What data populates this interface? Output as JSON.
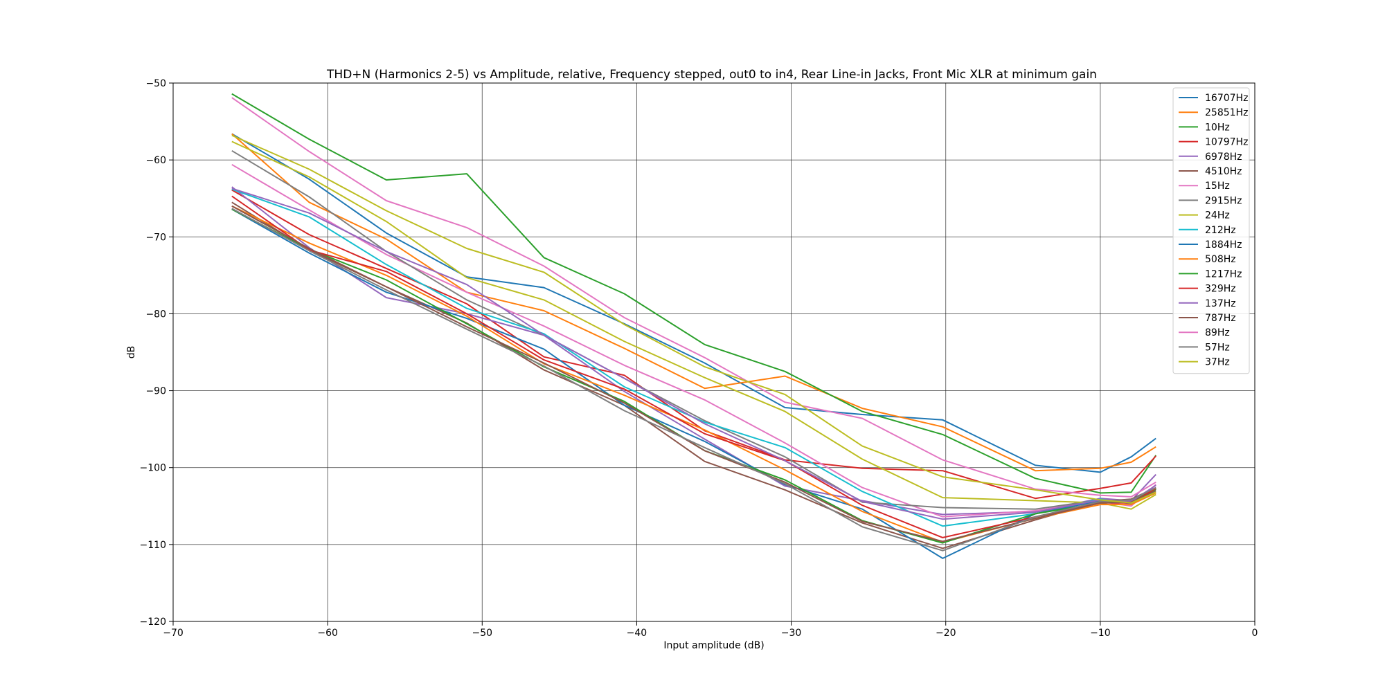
{
  "chart_data": {
    "type": "line",
    "title": "THD+N (Harmonics 2-5) vs Amplitude, relative, Frequency stepped, out0 to in4, Rear Line-in Jacks, Front Mic XLR at minimum gain",
    "xlabel": "Input amplitude (dB)",
    "ylabel": "dB",
    "xlim": [
      -70,
      0
    ],
    "ylim": [
      -120,
      -50
    ],
    "xticks": [
      -70,
      -60,
      -50,
      -40,
      -30,
      -20,
      -10,
      0
    ],
    "yticks": [
      -120,
      -110,
      -100,
      -90,
      -80,
      -70,
      -60,
      -50
    ],
    "xtick_labels": [
      "−70",
      "−60",
      "−50",
      "−40",
      "−30",
      "−20",
      "−10",
      "0"
    ],
    "ytick_labels": [
      "−120",
      "−110",
      "−100",
      "−90",
      "−80",
      "−70",
      "−60",
      "−50"
    ],
    "grid": true,
    "legend_position": "upper right",
    "x": [
      -66.2,
      -61.2,
      -56.2,
      -51.0,
      -46.0,
      -40.8,
      -35.6,
      -30.4,
      -25.4,
      -20.2,
      -14.2,
      -10.0,
      -8.0,
      -6.4
    ],
    "series": [
      {
        "name": "16707Hz",
        "color": "#1f77b4",
        "values": [
          -56.6,
          -62.5,
          -69.5,
          -75.2,
          -76.6,
          -81.3,
          -86.4,
          -92.2,
          -93.1,
          -93.8,
          -99.7,
          -100.6,
          -98.6,
          -96.2
        ]
      },
      {
        "name": "25851Hz",
        "color": "#ff7f0e",
        "values": [
          -56.6,
          -65.5,
          -70.3,
          -77.2,
          -79.6,
          -84.5,
          -89.7,
          -88.1,
          -92.3,
          -94.7,
          -100.4,
          -100.1,
          -99.3,
          -97.3
        ]
      },
      {
        "name": "10Hz",
        "color": "#2ca02c",
        "values": [
          -51.4,
          -57.3,
          -62.6,
          -61.8,
          -72.7,
          -77.4,
          -84.0,
          -87.5,
          -92.7,
          -95.7,
          -101.4,
          -103.3,
          -103.2,
          -98.4
        ]
      },
      {
        "name": "10797Hz",
        "color": "#d62728",
        "values": [
          -63.9,
          -69.7,
          -74.1,
          -78.7,
          -85.6,
          -88.0,
          -95.2,
          -99.0,
          -100.1,
          -100.4,
          -104.0,
          -102.7,
          -102.0,
          -98.5
        ]
      },
      {
        "name": "6978Hz",
        "color": "#9467bd",
        "values": [
          -63.5,
          -71.4,
          -77.9,
          -80.0,
          -82.8,
          -90.1,
          -96.3,
          -102.4,
          -104.3,
          -106.1,
          -105.7,
          -104.0,
          -104.3,
          -100.9
        ]
      },
      {
        "name": "4510Hz",
        "color": "#8c564b",
        "values": [
          -65.5,
          -71.7,
          -76.5,
          -81.2,
          -87.3,
          -91.9,
          -99.2,
          -102.9,
          -107.2,
          -110.5,
          -106.8,
          -104.4,
          -104.1,
          -102.6
        ]
      },
      {
        "name": "15Hz",
        "color": "#e377c2",
        "values": [
          -60.6,
          -66.5,
          -72.3,
          -77.2,
          -81.6,
          -86.7,
          -91.2,
          -96.8,
          -102.6,
          -106.4,
          -105.6,
          -104.4,
          -105.0,
          -102.2
        ]
      },
      {
        "name": "2915Hz",
        "color": "#7f7f7f",
        "values": [
          -58.8,
          -64.8,
          -71.9,
          -78.2,
          -82.8,
          -88.4,
          -93.9,
          -98.6,
          -104.5,
          -105.2,
          -105.4,
          -104.2,
          -104.6,
          -102.6
        ]
      },
      {
        "name": "24Hz",
        "color": "#bcbd22",
        "values": [
          -57.6,
          -62.2,
          -68.0,
          -75.3,
          -78.2,
          -83.6,
          -88.3,
          -92.7,
          -98.9,
          -103.9,
          -104.3,
          -104.6,
          -105.4,
          -103.5
        ]
      },
      {
        "name": "212Hz",
        "color": "#17becf",
        "values": [
          -63.8,
          -67.4,
          -73.6,
          -79.3,
          -82.6,
          -89.5,
          -94.1,
          -97.4,
          -103.1,
          -107.6,
          -106.0,
          -104.1,
          -104.7,
          -102.8
        ]
      },
      {
        "name": "1884Hz",
        "color": "#1f77b4",
        "values": [
          -66.4,
          -72.1,
          -77.2,
          -80.6,
          -84.6,
          -91.9,
          -96.6,
          -102.2,
          -105.4,
          -111.8,
          -106.0,
          -104.3,
          -104.5,
          -103.0
        ]
      },
      {
        "name": "508Hz",
        "color": "#ff7f0e",
        "values": [
          -66.0,
          -70.8,
          -75.0,
          -80.3,
          -86.5,
          -90.6,
          -95.1,
          -100.3,
          -105.7,
          -109.7,
          -106.6,
          -104.8,
          -104.8,
          -103.3
        ]
      },
      {
        "name": "1217Hz",
        "color": "#2ca02c",
        "values": [
          -66.4,
          -71.6,
          -75.6,
          -81.3,
          -86.9,
          -91.4,
          -97.8,
          -101.6,
          -106.9,
          -109.8,
          -106.0,
          -104.6,
          -104.4,
          -102.8
        ]
      },
      {
        "name": "329Hz",
        "color": "#d62728",
        "values": [
          -64.7,
          -71.7,
          -74.5,
          -80.0,
          -86.0,
          -89.8,
          -95.6,
          -99.1,
          -104.9,
          -109.1,
          -106.4,
          -104.6,
          -104.6,
          -102.7
        ]
      },
      {
        "name": "137Hz",
        "color": "#9467bd",
        "values": [
          -63.7,
          -66.9,
          -71.9,
          -76.2,
          -82.8,
          -88.4,
          -94.3,
          -99.1,
          -104.4,
          -106.7,
          -105.8,
          -104.2,
          -104.4,
          -102.3
        ]
      },
      {
        "name": "787Hz",
        "color": "#8c564b",
        "values": [
          -66.0,
          -71.5,
          -76.5,
          -81.7,
          -86.4,
          -91.6,
          -97.8,
          -101.9,
          -107.0,
          -109.6,
          -106.6,
          -104.6,
          -104.5,
          -103.0
        ]
      },
      {
        "name": "89Hz",
        "color": "#e377c2",
        "values": [
          -51.9,
          -58.9,
          -65.3,
          -68.8,
          -73.8,
          -80.5,
          -85.7,
          -91.5,
          -93.6,
          -99.0,
          -102.8,
          -103.6,
          -103.8,
          -101.9
        ]
      },
      {
        "name": "57Hz",
        "color": "#7f7f7f",
        "values": [
          -66.3,
          -71.8,
          -76.9,
          -82.0,
          -86.8,
          -92.6,
          -97.4,
          -102.1,
          -107.7,
          -110.8,
          -106.4,
          -104.4,
          -104.2,
          -102.6
        ]
      },
      {
        "name": "37Hz",
        "color": "#bcbd22",
        "values": [
          -56.8,
          -61.2,
          -66.6,
          -71.5,
          -74.6,
          -81.4,
          -86.9,
          -90.5,
          -97.2,
          -101.2,
          -102.9,
          -104.2,
          -104.6,
          -103.2
        ]
      }
    ]
  }
}
